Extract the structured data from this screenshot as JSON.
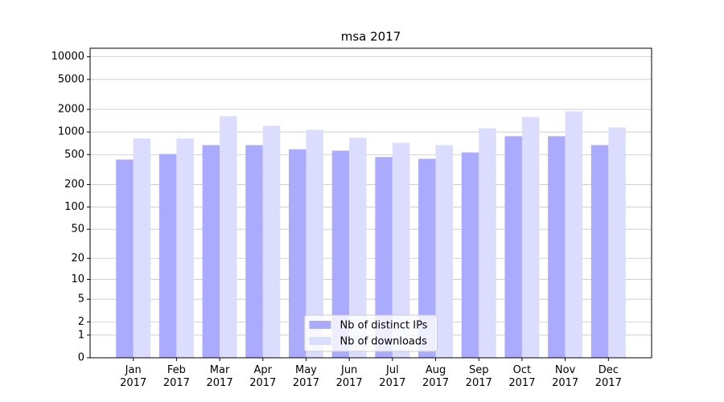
{
  "chart_data": {
    "type": "bar",
    "title": "msa 2017",
    "categories": [
      "Jan\n2017",
      "Feb\n2017",
      "Mar\n2017",
      "Apr\n2017",
      "May\n2017",
      "Jun\n2017",
      "Jul\n2017",
      "Aug\n2017",
      "Sep\n2017",
      "Oct\n2017",
      "Nov\n2017",
      "Dec\n2017"
    ],
    "series": [
      {
        "name": "Nb of distinct IPs",
        "color": "#aaaaff",
        "values": [
          430,
          510,
          670,
          670,
          590,
          565,
          465,
          440,
          535,
          880,
          880,
          670
        ]
      },
      {
        "name": "Nb of downloads",
        "color": "#dcdcff",
        "values": [
          820,
          820,
          1620,
          1210,
          1070,
          840,
          720,
          670,
          1120,
          1580,
          1880,
          1150
        ]
      }
    ],
    "yscale": "log1p",
    "ylim": [
      0,
      13000
    ],
    "yticks": [
      0,
      1,
      2,
      5,
      10,
      20,
      50,
      100,
      200,
      500,
      1000,
      2000,
      5000,
      10000
    ],
    "grid": true,
    "legend": "lower center"
  }
}
